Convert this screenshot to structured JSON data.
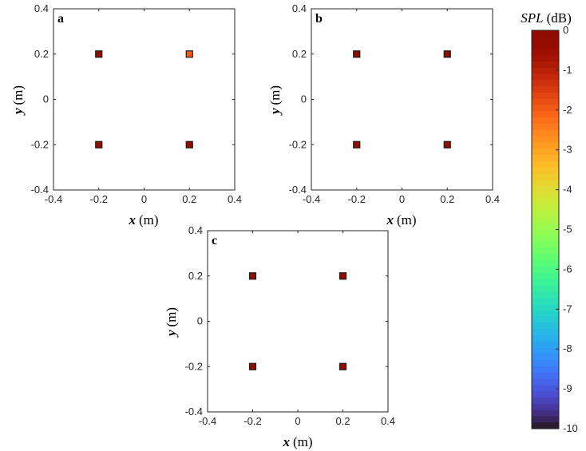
{
  "chart_data": {
    "type": "scatter",
    "panels": [
      {
        "label": "a",
        "x_label_var": "x",
        "x_label_unit": "(m)",
        "y_label_var": "y",
        "y_label_unit": "(m)",
        "xlim": [
          -0.4,
          0.4
        ],
        "ylim": [
          -0.4,
          0.4
        ],
        "ticks": [
          -0.4,
          -0.2,
          0,
          0.2,
          0.4
        ],
        "tick_labels": [
          "-0.4",
          "-0.2",
          "0",
          "0.2",
          "0.4"
        ],
        "points": [
          {
            "x": -0.2,
            "y": 0.2,
            "spl": 0
          },
          {
            "x": 0.2,
            "y": 0.2,
            "spl": -2
          },
          {
            "x": -0.2,
            "y": -0.2,
            "spl": 0
          },
          {
            "x": 0.2,
            "y": -0.2,
            "spl": 0
          }
        ]
      },
      {
        "label": "b",
        "x_label_var": "x",
        "x_label_unit": "(m)",
        "y_label_var": "y",
        "y_label_unit": "(m)",
        "xlim": [
          -0.4,
          0.4
        ],
        "ylim": [
          -0.4,
          0.4
        ],
        "ticks": [
          -0.4,
          -0.2,
          0,
          0.2,
          0.4
        ],
        "tick_labels": [
          "-0.4",
          "-0.2",
          "0",
          "0.2",
          "0.4"
        ],
        "points": [
          {
            "x": -0.2,
            "y": 0.2,
            "spl": 0
          },
          {
            "x": 0.2,
            "y": 0.2,
            "spl": 0
          },
          {
            "x": -0.2,
            "y": -0.2,
            "spl": 0
          },
          {
            "x": 0.2,
            "y": -0.2,
            "spl": 0
          }
        ]
      },
      {
        "label": "c",
        "x_label_var": "x",
        "x_label_unit": "(m)",
        "y_label_var": "y",
        "y_label_unit": "(m)",
        "xlim": [
          -0.4,
          0.4
        ],
        "ylim": [
          -0.4,
          0.4
        ],
        "ticks": [
          -0.4,
          -0.2,
          0,
          0.2,
          0.4
        ],
        "tick_labels": [
          "-0.4",
          "-0.2",
          "0",
          "0.2",
          "0.4"
        ],
        "points": [
          {
            "x": -0.2,
            "y": 0.2,
            "spl": 0
          },
          {
            "x": 0.2,
            "y": 0.2,
            "spl": 0
          },
          {
            "x": -0.2,
            "y": -0.2,
            "spl": 0
          },
          {
            "x": 0.2,
            "y": -0.2,
            "spl": 0
          }
        ]
      }
    ],
    "colorbar": {
      "title_var": "SPL",
      "title_unit": "(dB)",
      "range": [
        -10,
        0
      ],
      "ticks": [
        0,
        -1,
        -2,
        -3,
        -4,
        -5,
        -6,
        -7,
        -8,
        -9,
        -10
      ],
      "tick_labels": [
        "0",
        "-1",
        "-2",
        "-3",
        "-4",
        "-5",
        "-6",
        "-7",
        "-8",
        "-9",
        "-10"
      ],
      "colormap": "turbo"
    }
  }
}
